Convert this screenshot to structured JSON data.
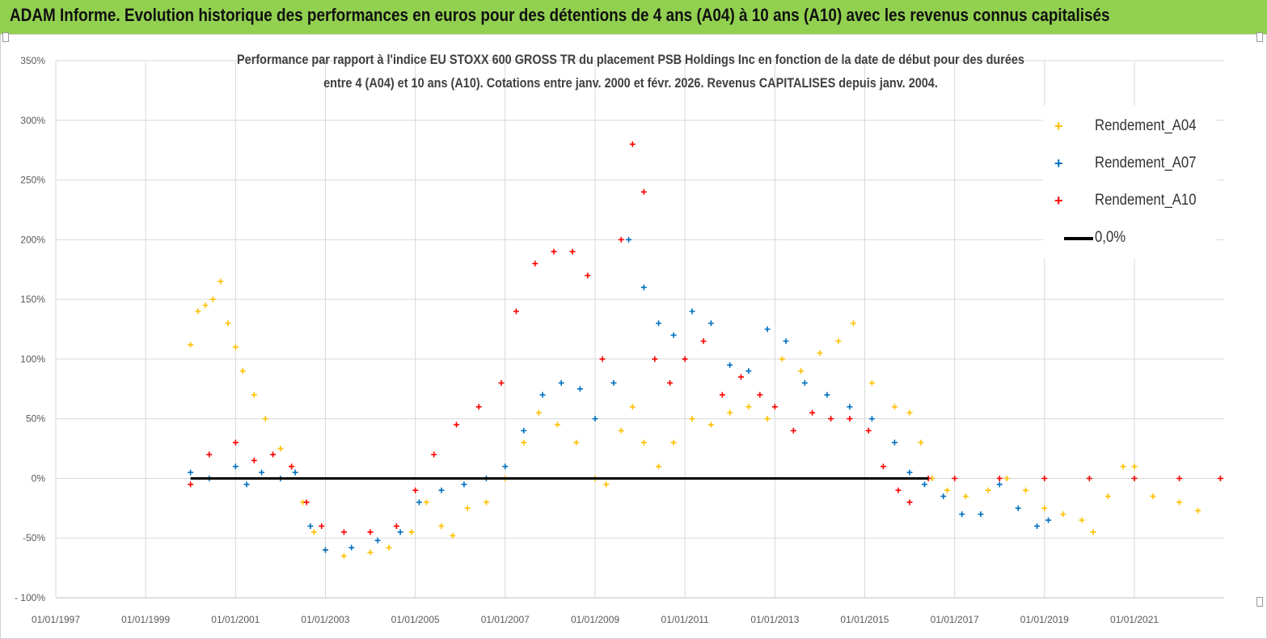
{
  "banner": {
    "title": "ADAM Informe. Evolution historique des performances en euros pour des détentions de 4 ans (A04) à 10 ans (A10) avec les revenus connus capitalisés"
  },
  "chart": {
    "subtitle_line1": "Performance par rapport à l'indice EU STOXX 600 GROSS TR  du placement PSB Holdings Inc en fonction de la date de début pour des durées",
    "subtitle_line2": "entre 4 (A04) et 10 ans (A10).  Cotations entre janv. 2000 et févr. 2026. Revenus  CAPITALISES depuis janv. 2004."
  },
  "legend": {
    "a04": "Rendement_A04",
    "a07": "Rendement_A07",
    "a10": "Rendement_A10",
    "zero": "0,0%"
  },
  "colors": {
    "banner": "#92d050",
    "a04": "#ffc000",
    "a07": "#0070c0",
    "a10": "#ff0000",
    "zero_line": "#000000",
    "grid": "#d9d9d9"
  },
  "chart_data": {
    "type": "scatter",
    "xlim": [
      "1997-01-01",
      "2022-12-31"
    ],
    "ylim": [
      -100,
      350
    ],
    "x_ticks": [
      "01/01/1997",
      "01/01/1999",
      "01/01/2001",
      "01/01/2003",
      "01/01/2005",
      "01/01/2007",
      "01/01/2009",
      "01/01/2011",
      "01/01/2013",
      "01/01/2015",
      "01/01/2017",
      "01/01/2019",
      "01/01/2021"
    ],
    "y_ticks": [
      "- 100%",
      "-50%",
      "0%",
      "50%",
      "100%",
      "150%",
      "200%",
      "250%",
      "300%",
      "350%"
    ],
    "y_tick_values": [
      -100,
      -50,
      0,
      50,
      100,
      150,
      200,
      250,
      300,
      350
    ],
    "grid": "vertical and horizontal",
    "legend_position": "top-right",
    "series": [
      {
        "name": "Rendement_A04",
        "color": "#ffc000",
        "marker": "+",
        "points": [
          [
            "2000-01-01",
            112
          ],
          [
            "2000-03-01",
            140
          ],
          [
            "2000-05-01",
            145
          ],
          [
            "2000-07-01",
            150
          ],
          [
            "2000-09-01",
            165
          ],
          [
            "2000-11-01",
            130
          ],
          [
            "2001-01-01",
            110
          ],
          [
            "2001-03-01",
            90
          ],
          [
            "2001-06-01",
            70
          ],
          [
            "2001-09-01",
            50
          ],
          [
            "2002-01-01",
            25
          ],
          [
            "2002-04-01",
            10
          ],
          [
            "2002-07-01",
            -20
          ],
          [
            "2002-10-01",
            -45
          ],
          [
            "2003-01-01",
            -60
          ],
          [
            "2003-06-01",
            -65
          ],
          [
            "2004-01-01",
            -62
          ],
          [
            "2004-06-01",
            -58
          ],
          [
            "2004-12-01",
            -45
          ],
          [
            "2005-04-01",
            -20
          ],
          [
            "2005-08-01",
            -40
          ],
          [
            "2005-11-01",
            -48
          ],
          [
            "2006-03-01",
            -25
          ],
          [
            "2006-08-01",
            -20
          ],
          [
            "2007-01-01",
            0
          ],
          [
            "2007-06-01",
            30
          ],
          [
            "2007-10-01",
            55
          ],
          [
            "2008-03-01",
            45
          ],
          [
            "2008-08-01",
            30
          ],
          [
            "2009-01-01",
            0
          ],
          [
            "2009-04-01",
            -5
          ],
          [
            "2009-08-01",
            40
          ],
          [
            "2009-11-01",
            60
          ],
          [
            "2010-02-01",
            30
          ],
          [
            "2010-06-01",
            10
          ],
          [
            "2010-10-01",
            30
          ],
          [
            "2011-03-01",
            50
          ],
          [
            "2011-08-01",
            45
          ],
          [
            "2012-01-01",
            55
          ],
          [
            "2012-06-01",
            60
          ],
          [
            "2012-11-01",
            50
          ],
          [
            "2013-03-01",
            100
          ],
          [
            "2013-08-01",
            90
          ],
          [
            "2014-01-01",
            105
          ],
          [
            "2014-06-01",
            115
          ],
          [
            "2014-10-01",
            130
          ],
          [
            "2015-03-01",
            80
          ],
          [
            "2015-09-01",
            60
          ],
          [
            "2016-01-01",
            55
          ],
          [
            "2016-04-01",
            30
          ],
          [
            "2016-07-01",
            0
          ],
          [
            "2016-11-01",
            -10
          ],
          [
            "2017-04-01",
            -15
          ],
          [
            "2017-10-01",
            -10
          ],
          [
            "2018-03-01",
            0
          ],
          [
            "2018-08-01",
            -10
          ],
          [
            "2019-01-01",
            -25
          ],
          [
            "2019-06-01",
            -30
          ],
          [
            "2019-11-01",
            -35
          ],
          [
            "2020-02-01",
            -45
          ],
          [
            "2020-06-01",
            -15
          ],
          [
            "2020-10-01",
            10
          ],
          [
            "2021-01-01",
            10
          ],
          [
            "2021-06-01",
            -15
          ],
          [
            "2022-01-01",
            -20
          ],
          [
            "2022-06-01",
            -27
          ]
        ]
      },
      {
        "name": "Rendement_A07",
        "color": "#0070c0",
        "marker": "+",
        "points": [
          [
            "2000-01-01",
            5
          ],
          [
            "2000-06-01",
            0
          ],
          [
            "2001-01-01",
            10
          ],
          [
            "2001-04-01",
            -5
          ],
          [
            "2001-08-01",
            5
          ],
          [
            "2002-01-01",
            0
          ],
          [
            "2002-05-01",
            5
          ],
          [
            "2002-09-01",
            -40
          ],
          [
            "2003-01-01",
            -60
          ],
          [
            "2003-08-01",
            -58
          ],
          [
            "2004-03-01",
            -52
          ],
          [
            "2004-09-01",
            -45
          ],
          [
            "2005-02-01",
            -20
          ],
          [
            "2005-08-01",
            -10
          ],
          [
            "2006-02-01",
            -5
          ],
          [
            "2006-08-01",
            0
          ],
          [
            "2007-01-01",
            10
          ],
          [
            "2007-06-01",
            40
          ],
          [
            "2007-11-01",
            70
          ],
          [
            "2008-04-01",
            80
          ],
          [
            "2008-09-01",
            75
          ],
          [
            "2009-01-01",
            50
          ],
          [
            "2009-06-01",
            80
          ],
          [
            "2009-10-01",
            200
          ],
          [
            "2010-02-01",
            160
          ],
          [
            "2010-06-01",
            130
          ],
          [
            "2010-10-01",
            120
          ],
          [
            "2011-03-01",
            140
          ],
          [
            "2011-08-01",
            130
          ],
          [
            "2012-01-01",
            95
          ],
          [
            "2012-06-01",
            90
          ],
          [
            "2012-11-01",
            125
          ],
          [
            "2013-04-01",
            115
          ],
          [
            "2013-09-01",
            80
          ],
          [
            "2014-03-01",
            70
          ],
          [
            "2014-09-01",
            60
          ],
          [
            "2015-03-01",
            50
          ],
          [
            "2015-09-01",
            30
          ],
          [
            "2016-01-01",
            5
          ],
          [
            "2016-05-01",
            -5
          ],
          [
            "2016-10-01",
            -15
          ],
          [
            "2017-03-01",
            -30
          ],
          [
            "2017-08-01",
            -30
          ],
          [
            "2018-01-01",
            -5
          ],
          [
            "2018-06-01",
            -25
          ],
          [
            "2018-11-01",
            -40
          ],
          [
            "2019-02-01",
            -35
          ]
        ]
      },
      {
        "name": "Rendement_A10",
        "color": "#ff0000",
        "marker": "+",
        "points": [
          [
            "2000-01-01",
            -5
          ],
          [
            "2000-06-01",
            20
          ],
          [
            "2001-01-01",
            30
          ],
          [
            "2001-06-01",
            15
          ],
          [
            "2001-11-01",
            20
          ],
          [
            "2002-04-01",
            10
          ],
          [
            "2002-08-01",
            -20
          ],
          [
            "2002-12-01",
            -40
          ],
          [
            "2003-06-01",
            -45
          ],
          [
            "2004-01-01",
            -45
          ],
          [
            "2004-08-01",
            -40
          ],
          [
            "2005-01-01",
            -10
          ],
          [
            "2005-06-01",
            20
          ],
          [
            "2005-12-01",
            45
          ],
          [
            "2006-06-01",
            60
          ],
          [
            "2006-12-01",
            80
          ],
          [
            "2007-04-01",
            140
          ],
          [
            "2007-09-01",
            180
          ],
          [
            "2008-02-01",
            190
          ],
          [
            "2008-07-01",
            190
          ],
          [
            "2008-11-01",
            170
          ],
          [
            "2009-03-01",
            100
          ],
          [
            "2009-08-01",
            200
          ],
          [
            "2009-11-01",
            280
          ],
          [
            "2010-02-01",
            240
          ],
          [
            "2010-05-01",
            100
          ],
          [
            "2010-09-01",
            80
          ],
          [
            "2011-01-01",
            100
          ],
          [
            "2011-06-01",
            115
          ],
          [
            "2011-11-01",
            70
          ],
          [
            "2012-04-01",
            85
          ],
          [
            "2012-09-01",
            70
          ],
          [
            "2013-01-01",
            60
          ],
          [
            "2013-06-01",
            40
          ],
          [
            "2013-11-01",
            55
          ],
          [
            "2014-04-01",
            50
          ],
          [
            "2014-09-01",
            50
          ],
          [
            "2015-02-01",
            40
          ],
          [
            "2015-06-01",
            10
          ],
          [
            "2015-10-01",
            -10
          ],
          [
            "2016-01-01",
            -20
          ],
          [
            "2016-06-01",
            0
          ],
          [
            "2017-01-01",
            0
          ],
          [
            "2018-01-01",
            0
          ],
          [
            "2019-01-01",
            0
          ],
          [
            "2020-01-01",
            0
          ],
          [
            "2021-01-01",
            0
          ],
          [
            "2022-01-01",
            0
          ],
          [
            "2022-12-01",
            0
          ]
        ]
      },
      {
        "name": "0,0%",
        "color": "#000000",
        "type": "line",
        "points": [
          [
            "2000-01-01",
            0
          ],
          [
            "2016-06-01",
            0
          ]
        ]
      }
    ]
  }
}
